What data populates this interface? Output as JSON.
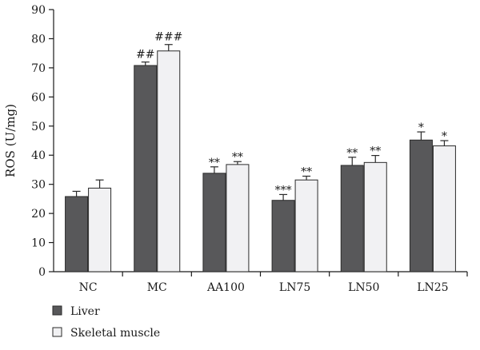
{
  "chart_data": {
    "type": "bar",
    "ylabel": "ROS (U/mg)",
    "ylim": [
      0,
      90
    ],
    "yticks": [
      0,
      10,
      20,
      30,
      40,
      50,
      60,
      70,
      80,
      90
    ],
    "categories": [
      "NC",
      "MC",
      "AA100",
      "LN75",
      "LN50",
      "LN25"
    ],
    "series": [
      {
        "name": "Liver",
        "color": "#58585a",
        "values": [
          25.8,
          70.8,
          33.8,
          24.5,
          36.5,
          45.2
        ],
        "errors": [
          1.8,
          1.2,
          2.2,
          2.0,
          2.8,
          2.8
        ],
        "significance": [
          "",
          "##",
          "**",
          "***",
          "**",
          "*"
        ]
      },
      {
        "name": "Skeletal muscle",
        "color": "#f1f1f3",
        "values": [
          28.7,
          75.8,
          36.8,
          31.5,
          37.5,
          43.2
        ],
        "errors": [
          2.8,
          2.2,
          1.0,
          1.3,
          2.4,
          1.8
        ],
        "significance": [
          "",
          "###",
          "**",
          "**",
          "**",
          "*"
        ]
      }
    ],
    "legend_position": "bottom-left",
    "grid": false
  }
}
